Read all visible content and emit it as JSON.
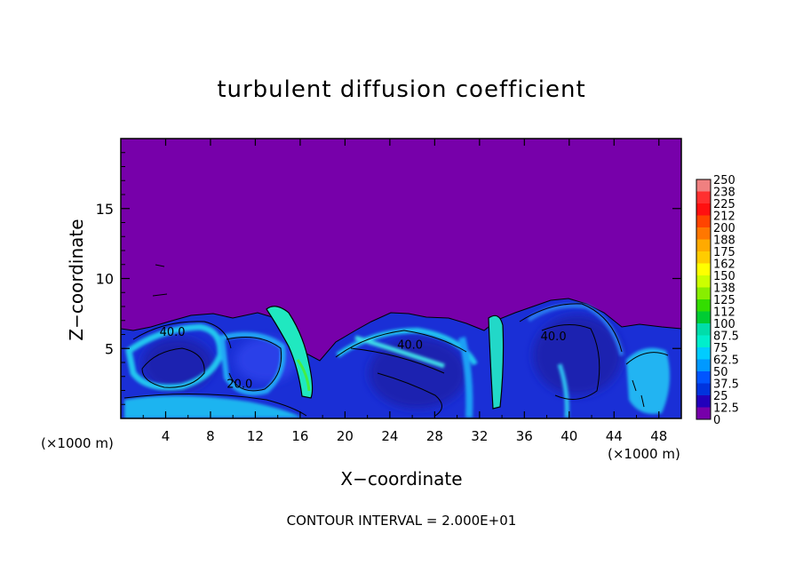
{
  "chart_data": {
    "type": "heatmap",
    "title": "turbulent diffusion coefficient",
    "xlabel": "X−coordinate",
    "ylabel": "Z−coordinate",
    "x_unit": "(×1000 m)",
    "footer": "CONTOUR INTERVAL = 2.000E+01",
    "xlim": [
      0,
      50
    ],
    "ylim": [
      0,
      20
    ],
    "x_ticks": [
      "4",
      "8",
      "12",
      "16",
      "20",
      "24",
      "28",
      "32",
      "36",
      "40",
      "44",
      "48"
    ],
    "y_ticks": [
      "5",
      "10",
      "15"
    ],
    "colorbar": {
      "levels": [
        "250",
        "238",
        "225",
        "212",
        "200",
        "188",
        "175",
        "162",
        "150",
        "138",
        "125",
        "112",
        "100",
        "87.5",
        "75",
        "62.5",
        "50",
        "37.5",
        "25",
        "12.5",
        "0"
      ],
      "colors": [
        "#f08080",
        "#ff3030",
        "#ff1010",
        "#ff4400",
        "#ff7700",
        "#ffaa00",
        "#ffcc00",
        "#ffff00",
        "#ccff00",
        "#88ee00",
        "#33dd00",
        "#00cc33",
        "#00ddaa",
        "#00eecc",
        "#00ccff",
        "#0099ff",
        "#0055ff",
        "#0033dd",
        "#2200bb",
        "#7700aa"
      ]
    },
    "contour_labels": [
      {
        "text": "40.0",
        "x": 4.6,
        "z": 5.9
      },
      {
        "text": "40.0",
        "x": 25.8,
        "z": 5.0
      },
      {
        "text": "40.0",
        "x": 38.6,
        "z": 5.6
      },
      {
        "text": "20.0",
        "x": 10.6,
        "z": 2.2
      }
    ],
    "regions": [
      {
        "name": "background",
        "value": 0
      },
      {
        "name": "turbulent-layer",
        "value_range": [
          25,
          62.5
        ],
        "top_z_approx": 7.5
      },
      {
        "name": "cells",
        "value_range": [
          50,
          87.5
        ]
      },
      {
        "name": "plumes",
        "value_range": [
          87.5,
          125
        ]
      }
    ]
  }
}
